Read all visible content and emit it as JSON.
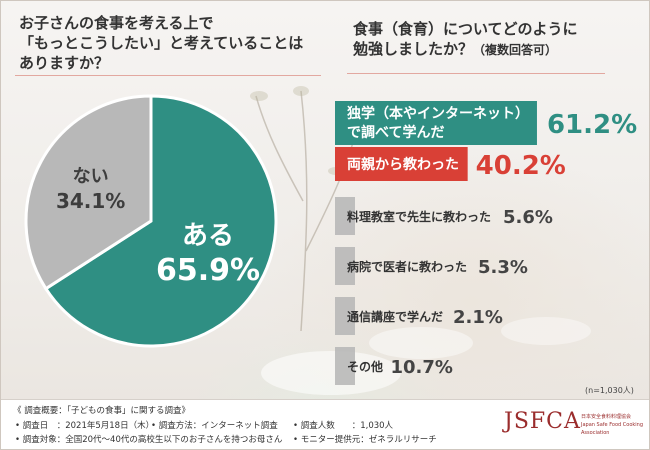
{
  "question1": {
    "line1": "お子さんの食事を考える上で",
    "line2": "「もっとこうしたい」と考えていることは",
    "line3": "ありますか？"
  },
  "question2": {
    "line1": "食事（食育）についてどのように",
    "line2": "勉強しましたか？",
    "line2_small": "（複数回答可）"
  },
  "chart_data": [
    {
      "type": "pie",
      "categories": [
        "ある",
        "ない"
      ],
      "values": [
        65.9,
        34.1
      ],
      "value_labels": [
        "65.9%",
        "34.1%"
      ],
      "colors": [
        "#2f8f83",
        "#b8b8b8"
      ]
    },
    {
      "type": "bar",
      "orientation": "horizontal",
      "categories": [
        "独学（本やインターネット）で調べて学んだ",
        "両親から教わった",
        "料理教室で先生に教わった",
        "病院で医者に教わった",
        "通信講座で学んだ",
        "その他"
      ],
      "label_lines": [
        [
          "独学（本やインターネット）",
          "で調べて学んだ"
        ],
        [
          "両親から教わった"
        ],
        [
          "料理教室で先生に教わった"
        ],
        [
          "病院で医者に教わった"
        ],
        [
          "通信講座で学んだ"
        ],
        [
          "その他"
        ]
      ],
      "values": [
        61.2,
        40.2,
        5.6,
        5.3,
        2.1,
        10.7
      ],
      "value_labels": [
        "61.2%",
        "40.2%",
        "5.6%",
        "5.3%",
        "2.1%",
        "10.7%"
      ],
      "bar_colors": [
        "#2f8f83",
        "#d94036",
        "#b5b5b5",
        "#b5b5b5",
        "#b5b5b5",
        "#b5b5b5"
      ],
      "value_colors": [
        "#2f8f83",
        "#d94036",
        "#444444",
        "#444444",
        "#444444",
        "#444444"
      ],
      "xlim": [
        0,
        100
      ]
    }
  ],
  "sample_note": "(n=1,030人)",
  "footer": {
    "summary": "《 調査概要：「子どもの食事」に関する調査》",
    "date": "• 調査日　：2021年5月18日（木）",
    "method": "• 調査方法：インターネット調査",
    "count": "• 調査人数　　：1,030人",
    "target": "• 調査対象：全国20代〜40代の高校生以下のお子さんを持つお母さん",
    "provider": "• モニター提供元：ゼネラルリサーチ"
  },
  "logo": {
    "text": "JSFCA",
    "sub1": "日本安全食料料理協会",
    "sub2": "Japan Safe Food Cooking Association"
  }
}
